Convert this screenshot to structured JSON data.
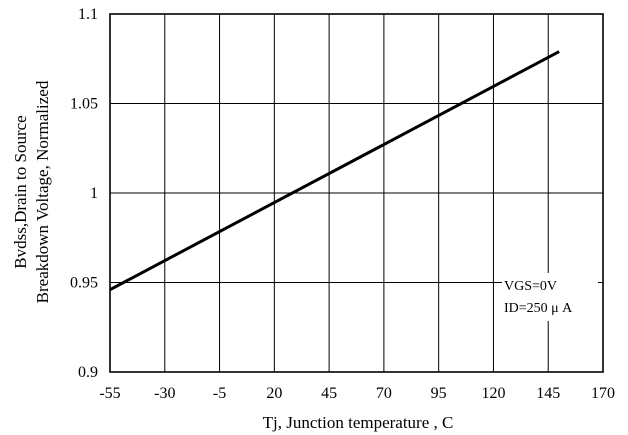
{
  "chart_data": {
    "type": "line",
    "xlabel": "Tj, Junction temperature , C",
    "ylabel_lines": [
      "Bvdss,Drain to Source",
      "Breakdown Voltage, Normalized"
    ],
    "xlim": [
      -55,
      170
    ],
    "ylim": [
      0.9,
      1.1
    ],
    "x_ticks": [
      -55,
      -30,
      -5,
      20,
      45,
      70,
      95,
      120,
      145,
      170
    ],
    "x_tick_labels": [
      "-55",
      "-30",
      "-5",
      "20",
      "45",
      "70",
      "95",
      "120",
      "145",
      "170"
    ],
    "y_ticks": [
      0.9,
      0.95,
      1.0,
      1.05,
      1.1
    ],
    "y_tick_labels": [
      "0.9",
      "0.95",
      "1",
      "1.05",
      "1.1"
    ],
    "grid": true,
    "series": [
      {
        "x": [
          -55,
          150
        ],
        "y": [
          0.946,
          1.079
        ]
      }
    ],
    "annotations": [
      "VGS=0V",
      "ID=250 μ A"
    ],
    "colors": {
      "line": "#000000",
      "grid": "#000000",
      "background": "#ffffff"
    }
  }
}
